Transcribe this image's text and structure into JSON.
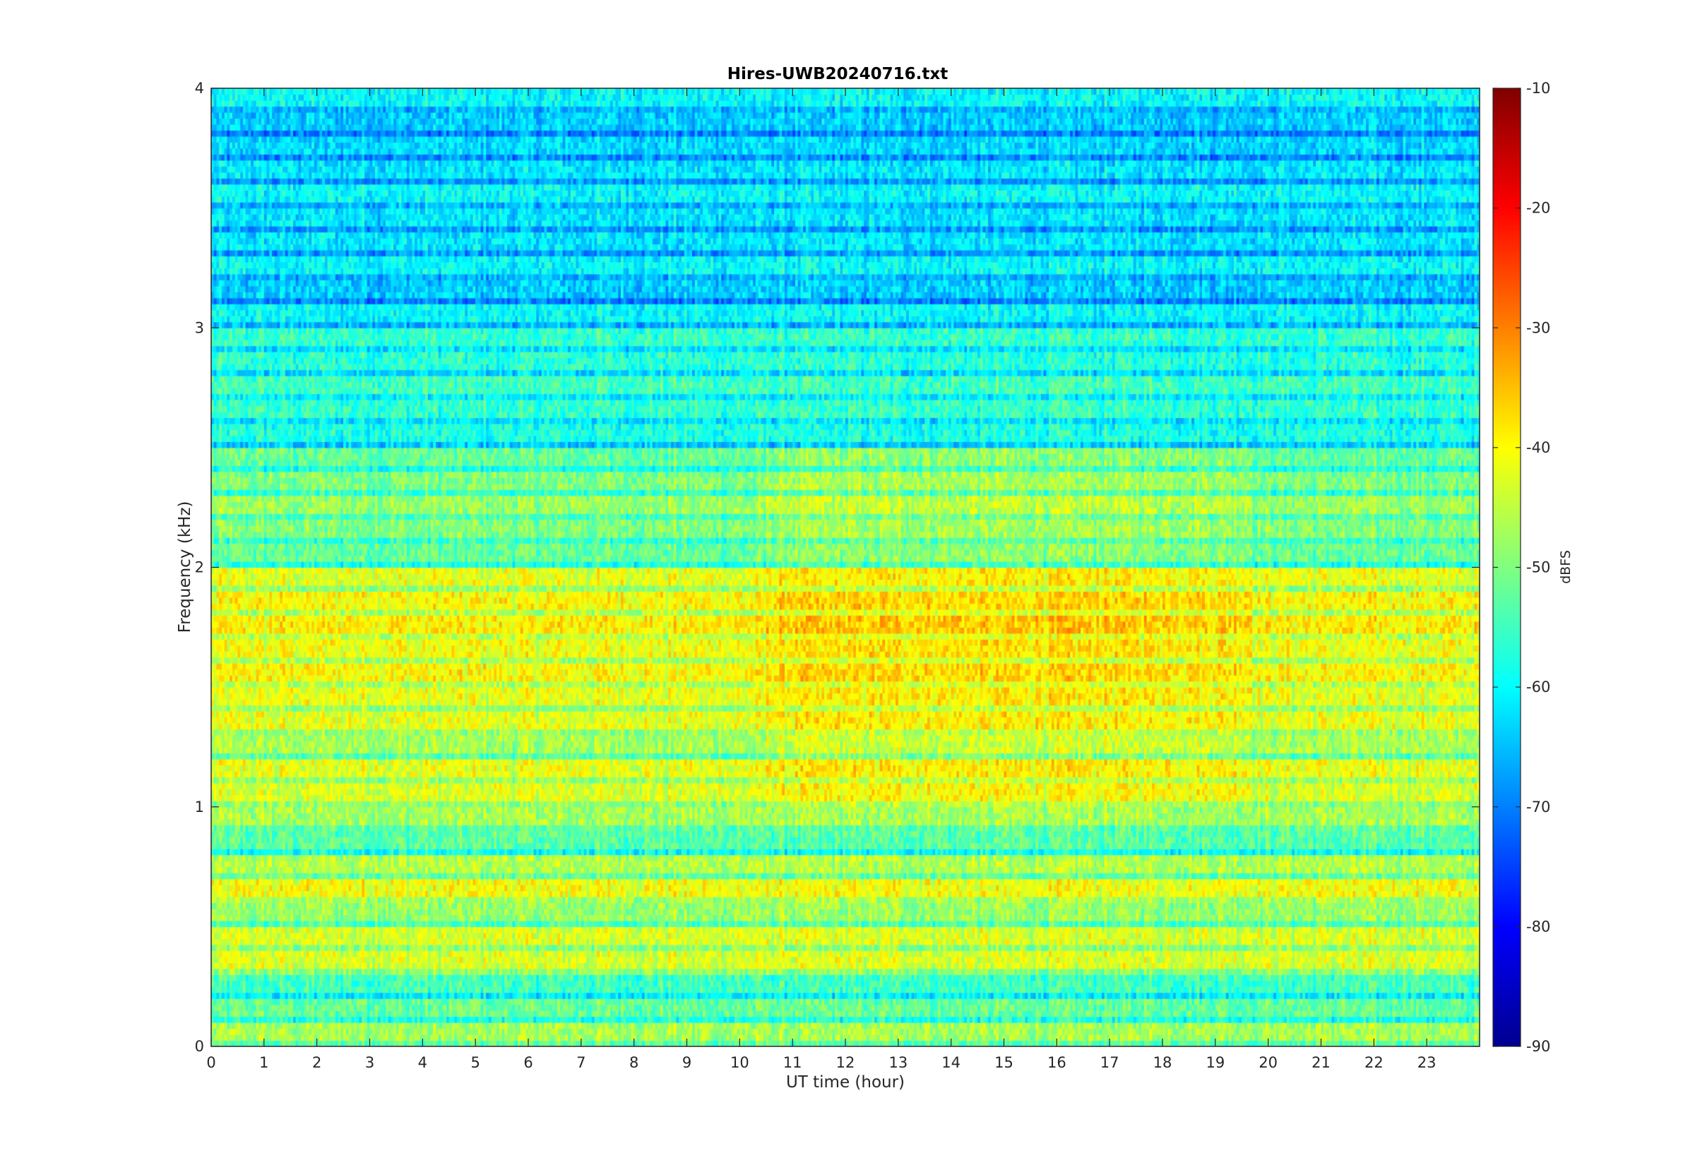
{
  "chart_data": {
    "type": "heatmap",
    "title": "Hires-UWB20240716.txt",
    "xlabel": "UT time (hour)",
    "ylabel": "Frequency (kHz)",
    "xlim": [
      0,
      24
    ],
    "ylim": [
      0,
      4
    ],
    "x_ticks": [
      0,
      1,
      2,
      3,
      4,
      5,
      6,
      7,
      8,
      9,
      10,
      11,
      12,
      13,
      14,
      15,
      16,
      17,
      18,
      19,
      20,
      21,
      22,
      23
    ],
    "x_tick_labels": [
      "0",
      "1",
      "2",
      "3",
      "4",
      "5",
      "6",
      "7",
      "8",
      "9",
      "10",
      "11",
      "12",
      "13",
      "14",
      "15",
      "16",
      "17",
      "18",
      "19",
      "20",
      "21",
      "22",
      "23"
    ],
    "y_ticks": [
      0,
      1,
      2,
      3,
      4
    ],
    "y_tick_labels": [
      "0",
      "1",
      "2",
      "3",
      "4"
    ],
    "colorbar": {
      "label": "dBFS",
      "colormap": "jet",
      "clim": [
        -90,
        -10
      ],
      "ticks": [
        -90,
        -80,
        -70,
        -60,
        -50,
        -40,
        -30,
        -20,
        -10
      ],
      "tick_labels": [
        "-90",
        "-80",
        "-70",
        "-60",
        "-50",
        "-40",
        "-30",
        "-20",
        "-10"
      ]
    },
    "grid": false,
    "approx_z_range_dBFS": [
      -72,
      -30
    ],
    "bands": [
      {
        "f_center_kHz": 0.05,
        "level_dBFS": -47
      },
      {
        "f_center_kHz": 0.15,
        "level_dBFS": -52
      },
      {
        "f_center_kHz": 0.25,
        "level_dBFS": -55
      },
      {
        "f_center_kHz": 0.35,
        "level_dBFS": -43
      },
      {
        "f_center_kHz": 0.45,
        "level_dBFS": -43
      },
      {
        "f_center_kHz": 0.55,
        "level_dBFS": -48
      },
      {
        "f_center_kHz": 0.65,
        "level_dBFS": -41
      },
      {
        "f_center_kHz": 0.75,
        "level_dBFS": -46
      },
      {
        "f_center_kHz": 0.85,
        "level_dBFS": -53
      },
      {
        "f_center_kHz": 0.95,
        "level_dBFS": -47
      },
      {
        "f_center_kHz": 1.05,
        "level_dBFS": -43
      },
      {
        "f_center_kHz": 1.15,
        "level_dBFS": -42
      },
      {
        "f_center_kHz": 1.25,
        "level_dBFS": -47
      },
      {
        "f_center_kHz": 1.35,
        "level_dBFS": -42
      },
      {
        "f_center_kHz": 1.45,
        "level_dBFS": -42
      },
      {
        "f_center_kHz": 1.55,
        "level_dBFS": -40
      },
      {
        "f_center_kHz": 1.65,
        "level_dBFS": -41
      },
      {
        "f_center_kHz": 1.75,
        "level_dBFS": -39
      },
      {
        "f_center_kHz": 1.85,
        "level_dBFS": -40
      },
      {
        "f_center_kHz": 1.95,
        "level_dBFS": -42
      },
      {
        "f_center_kHz": 2.05,
        "level_dBFS": -52
      },
      {
        "f_center_kHz": 2.15,
        "level_dBFS": -50
      },
      {
        "f_center_kHz": 2.25,
        "level_dBFS": -48
      },
      {
        "f_center_kHz": 2.35,
        "level_dBFS": -50
      },
      {
        "f_center_kHz": 2.45,
        "level_dBFS": -52
      },
      {
        "f_center_kHz": 2.55,
        "level_dBFS": -58
      },
      {
        "f_center_kHz": 2.65,
        "level_dBFS": -56
      },
      {
        "f_center_kHz": 2.75,
        "level_dBFS": -55
      },
      {
        "f_center_kHz": 2.85,
        "level_dBFS": -57
      },
      {
        "f_center_kHz": 2.95,
        "level_dBFS": -56
      },
      {
        "f_center_kHz": 3.05,
        "level_dBFS": -60
      },
      {
        "f_center_kHz": 3.15,
        "level_dBFS": -64
      },
      {
        "f_center_kHz": 3.25,
        "level_dBFS": -60
      },
      {
        "f_center_kHz": 3.35,
        "level_dBFS": -62
      },
      {
        "f_center_kHz": 3.45,
        "level_dBFS": -62
      },
      {
        "f_center_kHz": 3.55,
        "level_dBFS": -60
      },
      {
        "f_center_kHz": 3.65,
        "level_dBFS": -62
      },
      {
        "f_center_kHz": 3.75,
        "level_dBFS": -63
      },
      {
        "f_center_kHz": 3.85,
        "level_dBFS": -64
      },
      {
        "f_center_kHz": 3.95,
        "level_dBFS": -60
      }
    ]
  }
}
